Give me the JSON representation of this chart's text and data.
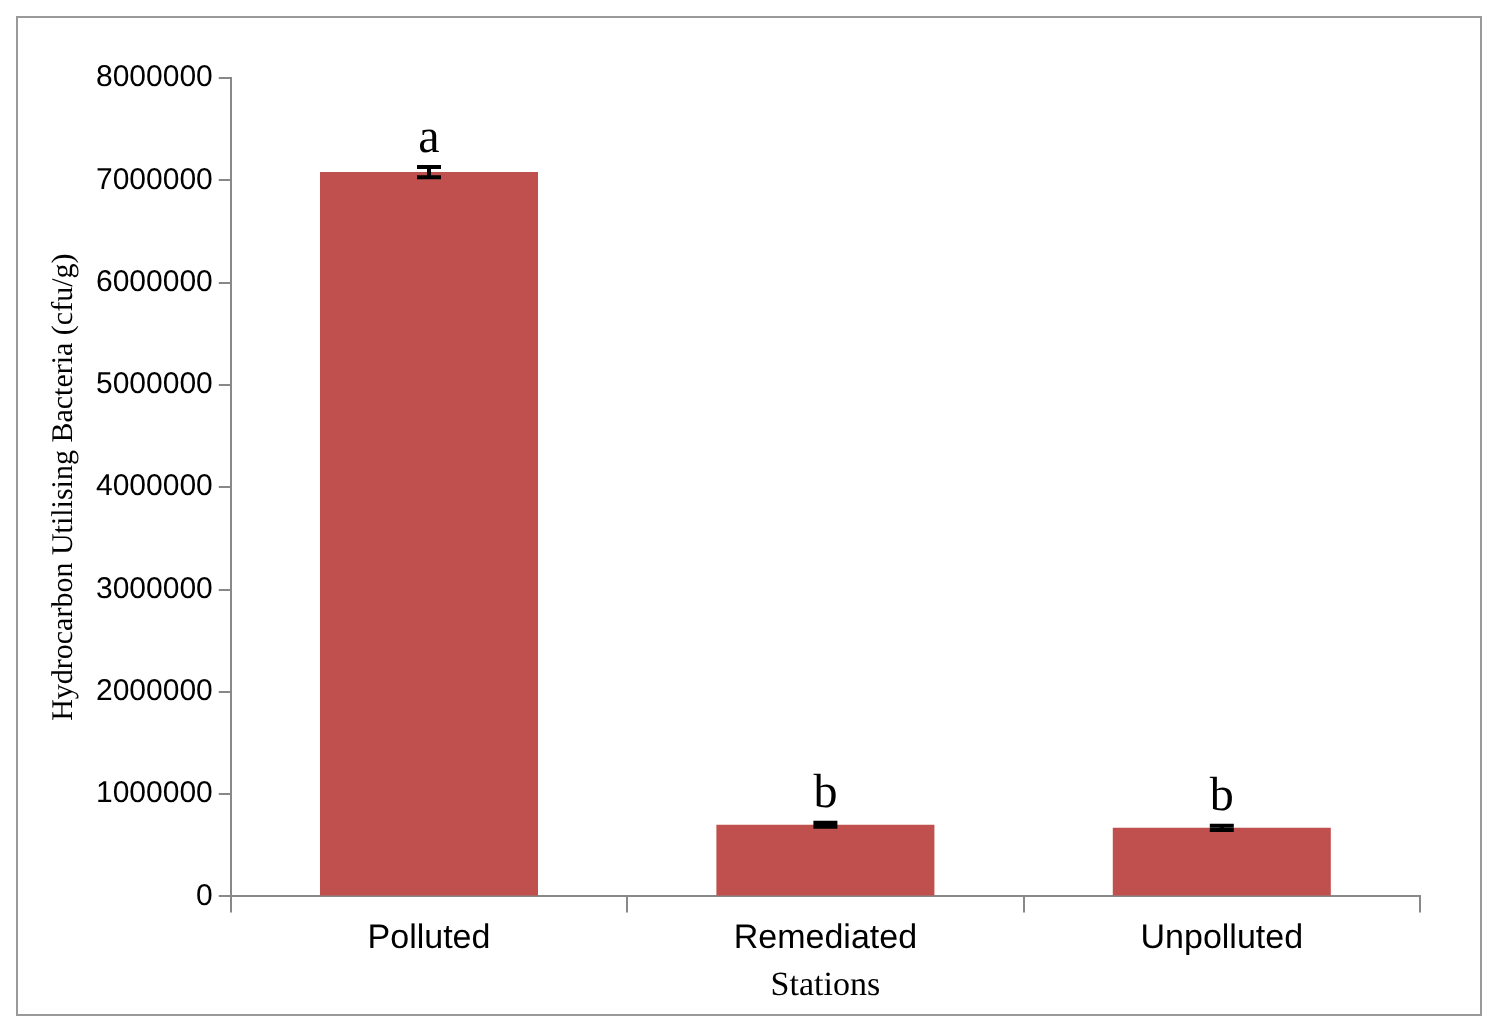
{
  "chart_data": {
    "type": "bar",
    "xlabel": "Stations",
    "ylabel": "Hydrocarbon Utilising Bacteria (cfu/g)",
    "categories": [
      "Polluted",
      "Remediated",
      "Unpolluted"
    ],
    "values": [
      7080000,
      700000,
      670000
    ],
    "errors": [
      50000,
      20000,
      20000
    ],
    "color": "#c0504d",
    "ylim": [
      0,
      8000000
    ],
    "yticks": [
      0,
      1000000,
      2000000,
      3000000,
      4000000,
      5000000,
      6000000,
      7000000,
      8000000
    ],
    "grid": false,
    "annotations": [
      {
        "text": "a",
        "x": "Polluted",
        "y": 7130000
      },
      {
        "text": "b",
        "x": "Remediated",
        "y": 720000
      },
      {
        "text": "b",
        "x": "Unpolluted",
        "y": 690000
      }
    ]
  }
}
